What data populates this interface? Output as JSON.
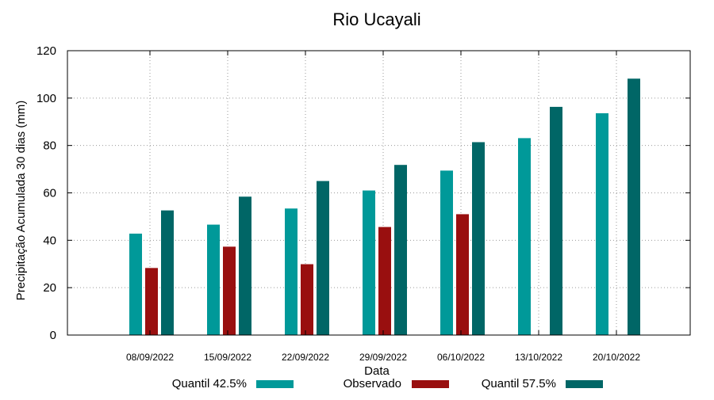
{
  "chart_data": {
    "type": "bar",
    "title": "Rio Ucayali",
    "xlabel": "Data",
    "ylabel": "Precipitação Acumulada 30 dias (mm)",
    "ylim": [
      0,
      120
    ],
    "yticks": [
      0,
      20,
      40,
      60,
      80,
      100,
      120
    ],
    "grid": true,
    "legend_position": "bottom",
    "categories": [
      "08/09/2022",
      "15/09/2022",
      "22/09/2022",
      "29/09/2022",
      "06/10/2022",
      "13/10/2022",
      "20/10/2022"
    ],
    "series": [
      {
        "name": "Quantil 42.5%",
        "color": "#009999",
        "values": [
          42.8,
          46.6,
          53.4,
          61.0,
          69.4,
          83.1,
          93.6
        ]
      },
      {
        "name": "Observado",
        "color": "#990f0f",
        "values": [
          28.3,
          37.3,
          29.9,
          45.6,
          51.0,
          null,
          null
        ]
      },
      {
        "name": "Quantil 57.5%",
        "color": "#006666",
        "values": [
          52.6,
          58.4,
          65.0,
          71.8,
          81.4,
          96.3,
          108.2
        ]
      }
    ]
  }
}
